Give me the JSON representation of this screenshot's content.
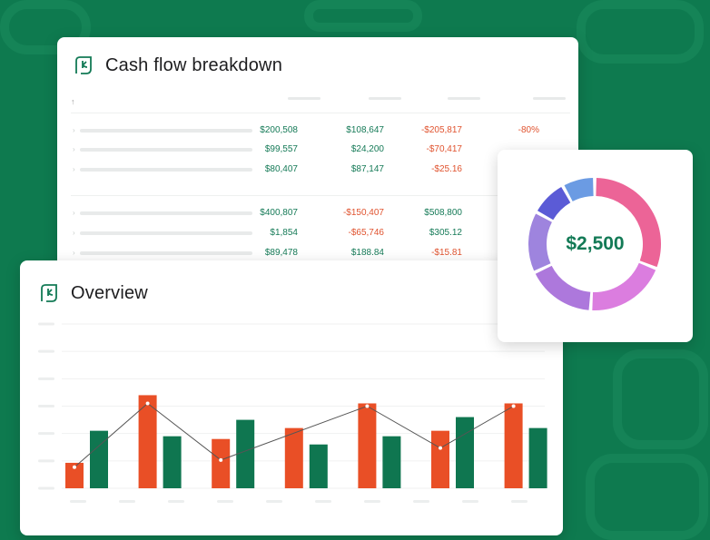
{
  "cash_flow": {
    "title": "Cash flow breakdown",
    "sort_icon": "arrow-up-icon",
    "groups": [
      [
        [
          "$200,508",
          "$108,647",
          "-$205,817",
          "-80%"
        ],
        [
          "$99,557",
          "$24,200",
          "-$70,417",
          ""
        ],
        [
          "$80,407",
          "$87,147",
          "-$25.16",
          ""
        ]
      ],
      [
        [
          "$400,807",
          "-$150,407",
          "$508,800",
          ""
        ],
        [
          "$1,854",
          "-$65,746",
          "$305.12",
          ""
        ],
        [
          "$89,478",
          "$188.84",
          "-$15.81",
          ""
        ]
      ]
    ]
  },
  "overview": {
    "title": "Overview",
    "chart_data": {
      "type": "bar",
      "grid": true,
      "ylim": [
        0,
        6
      ],
      "series": [
        {
          "color": "#e94f26",
          "values": [
            0.93,
            3.4,
            1.8,
            2.2,
            3.1,
            2.1,
            3.1
          ]
        },
        {
          "color": "#0f7650",
          "values": [
            2.1,
            1.9,
            2.5,
            1.6,
            1.9,
            2.6,
            2.2
          ]
        }
      ],
      "line": {
        "color": "#555555",
        "points_on_series": 0,
        "indices": [
          0,
          1,
          2,
          4,
          5,
          6
        ],
        "values": [
          0.77,
          3.1,
          1.03,
          3.0,
          1.47,
          3.0
        ]
      }
    }
  },
  "donut": {
    "total": "$2,500",
    "chart_data": {
      "type": "pie",
      "slices": [
        {
          "value": 31,
          "color": "#ec6497"
        },
        {
          "value": 20,
          "color": "#db7ddf"
        },
        {
          "value": 17,
          "color": "#ad78dc"
        },
        {
          "value": 15,
          "color": "#9e84de"
        },
        {
          "value": 9,
          "color": "#5b5bd6"
        },
        {
          "value": 8,
          "color": "#6b9be3"
        }
      ]
    }
  },
  "colors": {
    "background": "#0e7a4f",
    "positive": "#157a57",
    "negative": "#e0532f"
  }
}
